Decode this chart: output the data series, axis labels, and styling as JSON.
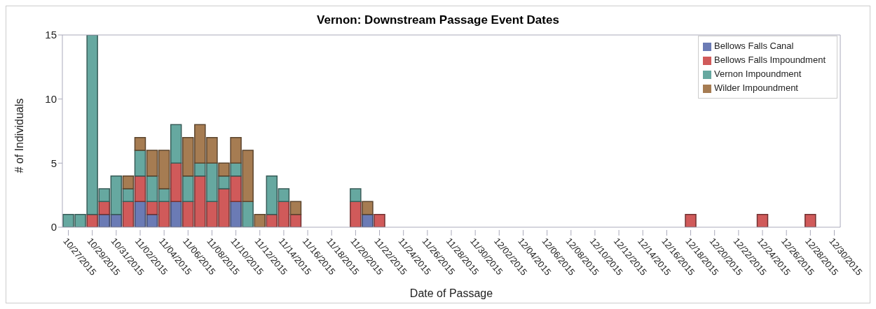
{
  "chart_data": {
    "type": "bar",
    "stacked": true,
    "title": "Vernon: Downstream Passage Event Dates",
    "xlabel": "Date of Passage",
    "ylabel": "# of Individuals",
    "categories": [
      "10/27/2015",
      null,
      "10/29/2015",
      null,
      "10/31/2015",
      null,
      "11/02/2015",
      null,
      "11/04/2015",
      null,
      "11/06/2015",
      null,
      "11/08/2015",
      null,
      "11/10/2015",
      null,
      "11/12/2015",
      null,
      "11/14/2015",
      null,
      "11/16/2015",
      null,
      "11/18/2015",
      null,
      "11/20/2015",
      null,
      "11/22/2015",
      null,
      "11/24/2015",
      null,
      "11/26/2015",
      null,
      "11/28/2015",
      null,
      "11/30/2015",
      null,
      "12/02/2015",
      null,
      "12/04/2015",
      null,
      "12/06/2015",
      null,
      "12/08/2015",
      null,
      "12/10/2015",
      null,
      "12/12/2015",
      null,
      "12/14/2015",
      null,
      "12/16/2015",
      null,
      "12/18/2015",
      null,
      "12/20/2015",
      null,
      "12/22/2015",
      null,
      "12/24/2015",
      null,
      "12/26/2015",
      null,
      "12/28/2015",
      null,
      "12/30/2015"
    ],
    "series": [
      {
        "name": "Bellows Falls Canal",
        "color": "#6b7bb5",
        "values": [
          0,
          0,
          0,
          1,
          1,
          0,
          2,
          1,
          0,
          2,
          0,
          0,
          0,
          0,
          2,
          0,
          0,
          0,
          0,
          0,
          0,
          0,
          0,
          0,
          0,
          1,
          0,
          0,
          0,
          0,
          0,
          0,
          0,
          0,
          0,
          0,
          0,
          0,
          0,
          0,
          0,
          0,
          0,
          0,
          0,
          0,
          0,
          0,
          0,
          0,
          0,
          0,
          0,
          0,
          0,
          0,
          0,
          0,
          0,
          0,
          0,
          0,
          0,
          0,
          0
        ]
      },
      {
        "name": "Bellows Falls Impoundment",
        "color": "#d05a5a",
        "values": [
          0,
          0,
          1,
          1,
          0,
          2,
          2,
          1,
          2,
          3,
          2,
          4,
          2,
          3,
          2,
          0,
          0,
          1,
          2,
          1,
          0,
          0,
          0,
          0,
          2,
          0,
          1,
          0,
          0,
          0,
          0,
          0,
          0,
          0,
          0,
          0,
          0,
          0,
          0,
          0,
          0,
          0,
          0,
          0,
          0,
          0,
          0,
          0,
          0,
          0,
          0,
          0,
          1,
          0,
          0,
          0,
          0,
          0,
          1,
          0,
          0,
          0,
          1,
          0,
          0
        ]
      },
      {
        "name": "Vernon Impoundment",
        "color": "#66a8a0",
        "values": [
          1,
          1,
          14,
          1,
          3,
          1,
          2,
          2,
          1,
          3,
          2,
          1,
          3,
          1,
          1,
          2,
          0,
          3,
          1,
          0,
          0,
          0,
          0,
          0,
          1,
          0,
          0,
          0,
          0,
          0,
          0,
          0,
          0,
          0,
          0,
          0,
          0,
          0,
          0,
          0,
          0,
          0,
          0,
          0,
          0,
          0,
          0,
          0,
          0,
          0,
          0,
          0,
          0,
          0,
          0,
          0,
          0,
          0,
          0,
          0,
          0,
          0,
          0,
          0,
          0
        ]
      },
      {
        "name": "Wilder Impoundment",
        "color": "#a67c52",
        "values": [
          0,
          0,
          0,
          0,
          0,
          1,
          1,
          2,
          3,
          0,
          3,
          3,
          2,
          1,
          2,
          4,
          1,
          0,
          0,
          1,
          0,
          0,
          0,
          0,
          0,
          1,
          0,
          0,
          0,
          0,
          0,
          0,
          0,
          0,
          0,
          0,
          0,
          0,
          0,
          0,
          0,
          0,
          0,
          0,
          0,
          0,
          0,
          0,
          0,
          0,
          0,
          0,
          0,
          0,
          0,
          0,
          0,
          0,
          0,
          0,
          0,
          0,
          0,
          0,
          0
        ]
      }
    ],
    "ylim": [
      0,
      15
    ],
    "yticks": [
      0,
      5,
      10,
      15
    ],
    "legend": "top right"
  }
}
